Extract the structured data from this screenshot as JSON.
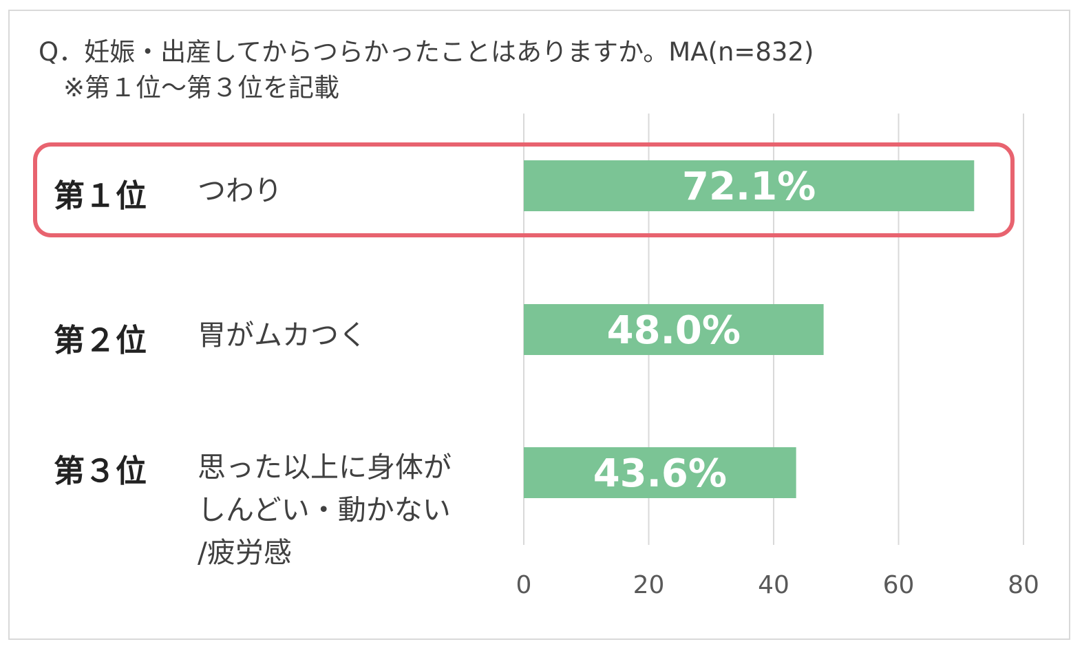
{
  "question": "Q．妊娠・出産してからつらかったことはありますか。MA(n=832)",
  "note": "※第１位～第３位を記載",
  "ranks": [
    {
      "rank": "第１位",
      "item": "つわり"
    },
    {
      "rank": "第２位",
      "item": "胃がムカつく"
    },
    {
      "rank": "第３位",
      "item_lines": [
        "思った以上に身体が",
        "しんどい・動かない",
        "/疲労感"
      ]
    }
  ],
  "colors": {
    "bar": "#7bc495",
    "highlight": "#e8636f",
    "grid": "#d9d9d9"
  },
  "chart_data": {
    "type": "bar",
    "orientation": "horizontal",
    "categories": [
      "つわり",
      "胃がムカつく",
      "思った以上に身体がしんどい・動かない/疲労感"
    ],
    "values": [
      72.1,
      48.0,
      43.6
    ],
    "value_labels": [
      "72.1%",
      "48.0%",
      "43.6%"
    ],
    "xlim": [
      0,
      80
    ],
    "xticks": [
      "0",
      "20",
      "40",
      "60",
      "80"
    ],
    "grid": true,
    "highlighted_category": "つわり"
  }
}
